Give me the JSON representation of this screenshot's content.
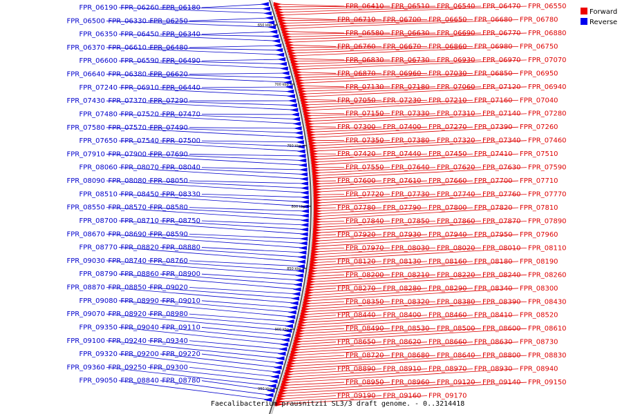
{
  "legend": [
    {
      "label": "Forward",
      "color": "#ee0000"
    },
    {
      "label": "Reverse",
      "color": "#0000ee"
    }
  ],
  "caption": "Faecalibacterium prausnitzii SL3/3 draft genome. - 0..3214418",
  "ticks": [
    "650 kbp",
    "700 kbp",
    "750 kbp",
    "800 kbp",
    "850 kbp",
    "900 kbp",
    "950 kbp"
  ],
  "reverse_genes": [
    "FPR_06180",
    "FPR_06260",
    "FPR_06190",
    "FPR_06250",
    "FPR_06330",
    "FPR_06500",
    "FPR_06340",
    "FPR_06450",
    "FPR_06350",
    "FPR_06480",
    "FPR_06610",
    "FPR_06370",
    "FPR_06490",
    "FPR_06590",
    "FPR_06600",
    "FPR_06620",
    "FPR_06380",
    "FPR_06640",
    "FPR_06440",
    "FPR_06910",
    "FPR_07240",
    "FPR_07290",
    "FPR_07370",
    "FPR_07430",
    "FPR_07470",
    "FPR_07520",
    "FPR_07480",
    "FPR_07490",
    "FPR_07570",
    "FPR_07580",
    "FPR_07500",
    "FPR_07540",
    "FPR_07650",
    "FPR_07690",
    "FPR_07900",
    "FPR_07910",
    "FPR_08040",
    "FPR_08070",
    "FPR_08060",
    "FPR_08050",
    "FPR_08080",
    "FPR_08090",
    "FPR_08330",
    "FPR_08450",
    "FPR_08510",
    "FPR_08580",
    "FPR_08570",
    "FPR_08550",
    "FPR_08750",
    "FPR_08710",
    "FPR_08700",
    "FPR_08590",
    "FPR_08690",
    "FPR_08670",
    "FPR_08880",
    "FPR_08820",
    "FPR_08770",
    "FPR_08760",
    "FPR_08740",
    "FPR_09030",
    "FPR_08900",
    "FPR_08860",
    "FPR_08790",
    "FPR_09020",
    "FPR_08850",
    "FPR_08870",
    "FPR_09010",
    "FPR_08990",
    "FPR_09080",
    "FPR_08980",
    "FPR_08920",
    "FPR_09070",
    "FPR_09110",
    "FPR_09040",
    "FPR_09350",
    "FPR_09340",
    "FPR_09240",
    "FPR_09100",
    "FPR_09220",
    "FPR_09200",
    "FPR_09320",
    "FPR_09300",
    "FPR_09250",
    "FPR_09360",
    "FPR_08780",
    "FPR_08840",
    "FPR_09050"
  ],
  "forward_genes": [
    "FPR_06410",
    "FPR_06510",
    "FPR_06540",
    "FPR_06470",
    "FPR_06550",
    "FPR_06710",
    "FPR_06700",
    "FPR_06650",
    "FPR_06680",
    "FPR_06780",
    "FPR_06580",
    "FPR_06630",
    "FPR_06690",
    "FPR_06770",
    "FPR_06880",
    "FPR_06760",
    "FPR_06670",
    "FPR_06860",
    "FPR_06980",
    "FPR_06750",
    "FPR_06830",
    "FPR_06730",
    "FPR_06930",
    "FPR_06970",
    "FPR_07070",
    "FPR_06870",
    "FPR_06960",
    "FPR_07030",
    "FPR_06850",
    "FPR_06950",
    "FPR_07130",
    "FPR_07180",
    "FPR_07060",
    "FPR_07120",
    "FPR_06940",
    "FPR_07050",
    "FPR_07230",
    "FPR_07210",
    "FPR_07160",
    "FPR_07040",
    "FPR_07150",
    "FPR_07330",
    "FPR_07310",
    "FPR_07140",
    "FPR_07280",
    "FPR_07300",
    "FPR_07400",
    "FPR_07270",
    "FPR_07390",
    "FPR_07260",
    "FPR_07350",
    "FPR_07380",
    "FPR_07320",
    "FPR_07340",
    "FPR_07460",
    "FPR_07420",
    "FPR_07440",
    "FPR_07450",
    "FPR_07410",
    "FPR_07510",
    "FPR_07550",
    "FPR_07640",
    "FPR_07620",
    "FPR_07630",
    "FPR_07590",
    "FPR_07600",
    "FPR_07610",
    "FPR_07660",
    "FPR_07700",
    "FPR_07710",
    "FPR_07720",
    "FPR_07730",
    "FPR_07740",
    "FPR_07760",
    "FPR_07770",
    "FPR_07780",
    "FPR_07790",
    "FPR_07800",
    "FPR_07820",
    "FPR_07810",
    "FPR_07840",
    "FPR_07850",
    "FPR_07860",
    "FPR_07870",
    "FPR_07890",
    "FPR_07920",
    "FPR_07930",
    "FPR_07940",
    "FPR_07950",
    "FPR_07960",
    "FPR_07970",
    "FPR_08030",
    "FPR_08020",
    "FPR_08010",
    "FPR_08110",
    "FPR_08120",
    "FPR_08130",
    "FPR_08160",
    "FPR_08180",
    "FPR_08190",
    "FPR_08200",
    "FPR_08210",
    "FPR_08220",
    "FPR_08240",
    "FPR_08260",
    "FPR_08270",
    "FPR_08280",
    "FPR_08290",
    "FPR_08340",
    "FPR_08300",
    "FPR_08350",
    "FPR_08320",
    "FPR_08380",
    "FPR_08390",
    "FPR_08430",
    "FPR_08440",
    "FPR_08400",
    "FPR_08460",
    "FPR_08410",
    "FPR_08520",
    "FPR_08490",
    "FPR_08530",
    "FPR_08500",
    "FPR_08600",
    "FPR_08610",
    "FPR_08650",
    "FPR_08620",
    "FPR_08660",
    "FPR_08630",
    "FPR_08730",
    "FPR_08720",
    "FPR_08680",
    "FPR_08640",
    "FPR_08800",
    "FPR_08830",
    "FPR_08890",
    "FPR_08910",
    "FPR_08970",
    "FPR_08930",
    "FPR_08940",
    "FPR_08950",
    "FPR_08960",
    "FPR_09120",
    "FPR_09140",
    "FPR_09150",
    "FPR_09190",
    "FPR_09160",
    "FPR_09170"
  ]
}
